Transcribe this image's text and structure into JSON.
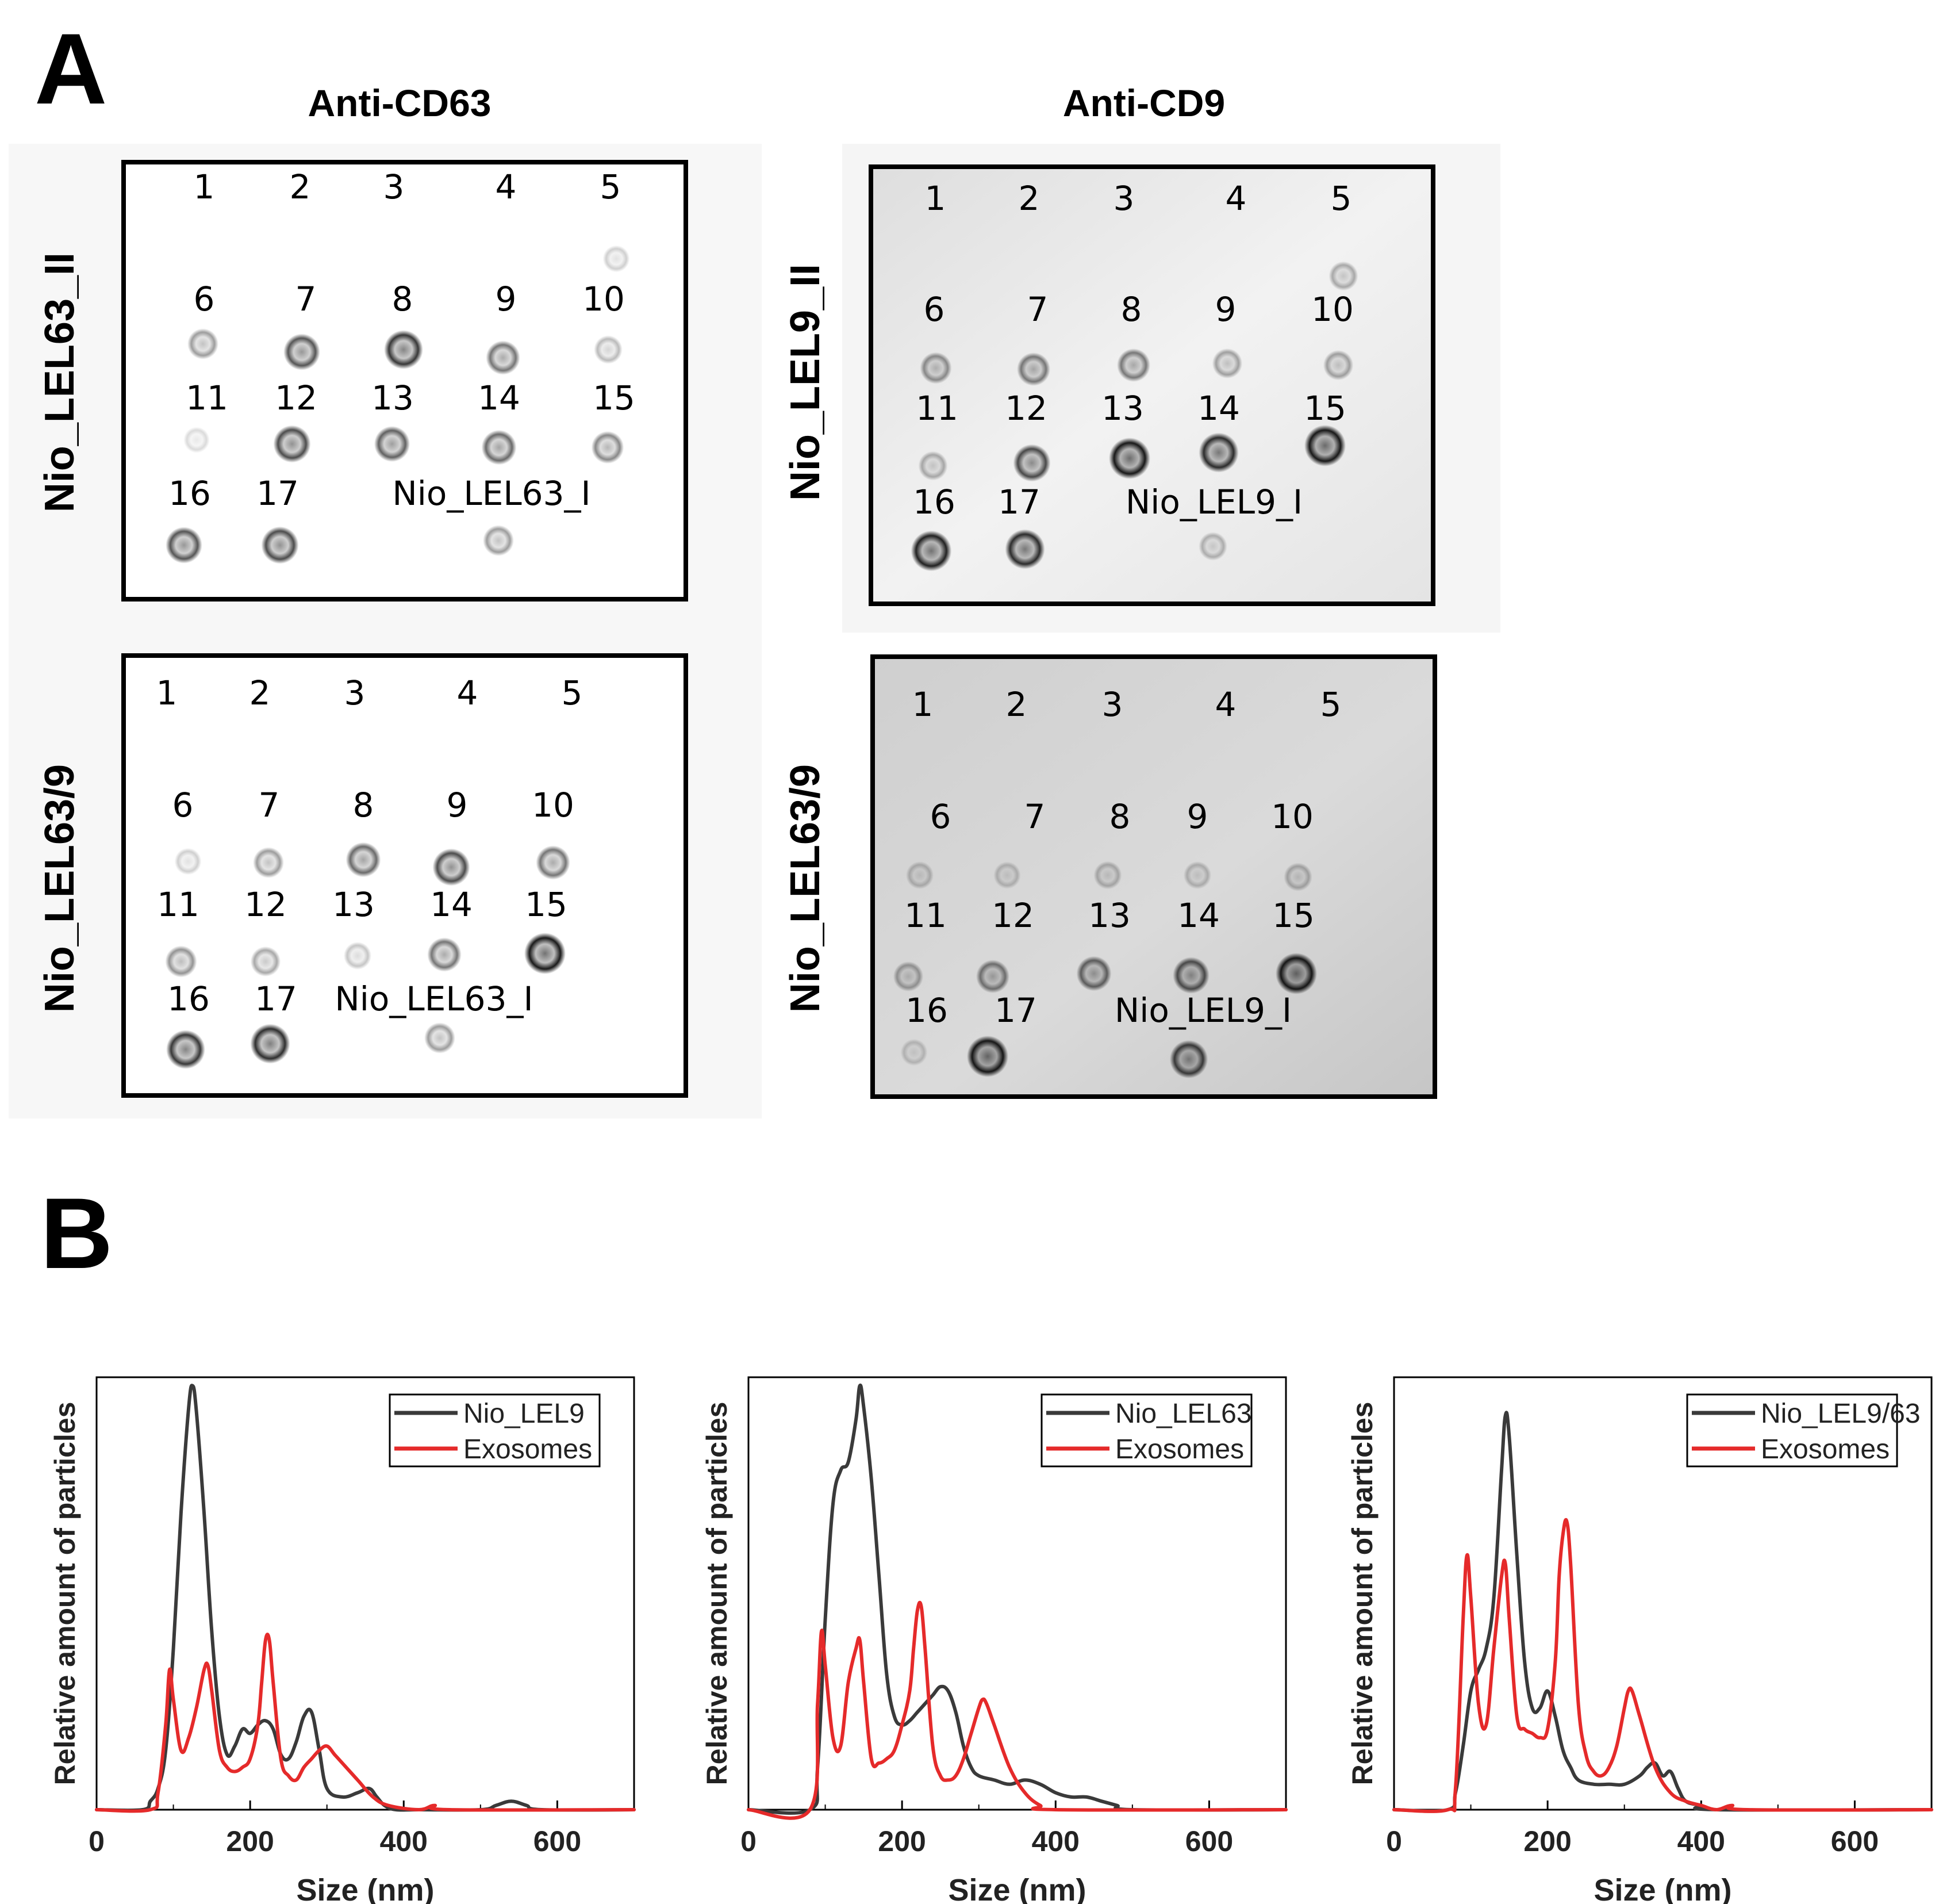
{
  "panel_a": {
    "label": "A",
    "column_titles": [
      "Anti-CD63",
      "Anti-CD9"
    ],
    "row_labels": {
      "top_left": "Nio_LEL63_II",
      "top_right": "Nio_LEL9_II",
      "bottom_left": "Nio_LEL63/9",
      "bottom_right": "Nio_LEL63/9"
    },
    "blots": [
      {
        "id": "cd63-top",
        "lane_labels": [
          "1",
          "2",
          "3",
          "4",
          "5",
          "6",
          "7",
          "8",
          "9",
          "10",
          "11",
          "12",
          "13",
          "14",
          "15",
          "16",
          "17"
        ],
        "control_label": "Nio_LEL63_I",
        "spot_intensity": [
          0,
          0,
          0,
          0,
          0.1,
          0.35,
          0.7,
          0.85,
          0.55,
          0.2,
          0.05,
          0.75,
          0.65,
          0.6,
          0.45,
          0.7,
          0.75,
          0.35
        ]
      },
      {
        "id": "cd9-top",
        "lane_labels": [
          "1",
          "2",
          "3",
          "4",
          "5",
          "6",
          "7",
          "8",
          "9",
          "10",
          "11",
          "12",
          "13",
          "14",
          "15",
          "16",
          "17"
        ],
        "control_label": "Nio_LEL9_I",
        "spot_intensity": [
          0,
          0,
          0,
          0,
          0.25,
          0.4,
          0.5,
          0.5,
          0.3,
          0.3,
          0.25,
          0.75,
          1,
          0.9,
          1,
          0.95,
          0.9,
          0.2
        ]
      },
      {
        "id": "cd63-bottom",
        "lane_labels": [
          "1",
          "2",
          "3",
          "4",
          "5",
          "6",
          "7",
          "8",
          "9",
          "10",
          "11",
          "12",
          "13",
          "14",
          "15",
          "16",
          "17"
        ],
        "control_label": "Nio_LEL63_I",
        "spot_intensity": [
          0,
          0,
          0,
          0,
          0,
          0.1,
          0.35,
          0.6,
          0.75,
          0.55,
          0.4,
          0.3,
          0.15,
          0.55,
          1,
          0.85,
          0.9,
          0.35
        ]
      },
      {
        "id": "cd9-bottom",
        "lane_labels": [
          "1",
          "2",
          "3",
          "4",
          "5",
          "6",
          "7",
          "8",
          "9",
          "10",
          "11",
          "12",
          "13",
          "14",
          "15",
          "16",
          "17"
        ],
        "control_label": "Nio_LEL9_I",
        "spot_intensity": [
          0,
          0,
          0,
          0,
          0,
          0.15,
          0.12,
          0.18,
          0.15,
          0.2,
          0.3,
          0.5,
          0.6,
          0.7,
          1,
          0.1,
          1,
          0.8
        ]
      }
    ]
  },
  "panel_b": {
    "label": "B"
  },
  "chart_data": [
    {
      "type": "line",
      "xlabel": "Size (nm)",
      "ylabel": "Relative amount of particles",
      "xlim": [
        0,
        700
      ],
      "ylim": [
        0,
        1.02
      ],
      "x_ticks": [
        "0",
        "200",
        "400",
        "600"
      ],
      "legend_position": "top-right",
      "series": [
        {
          "name": "Nio_LEL9",
          "color": "#3a3a3a",
          "x": [
            0,
            60,
            70,
            80,
            90,
            100,
            110,
            120,
            125,
            130,
            140,
            150,
            160,
            170,
            180,
            190,
            200,
            210,
            220,
            230,
            240,
            250,
            260,
            270,
            280,
            290,
            300,
            320,
            340,
            355,
            365,
            375,
            390,
            420,
            500,
            520,
            540,
            560,
            580,
            700
          ],
          "y": [
            0,
            0,
            0.02,
            0.05,
            0.14,
            0.38,
            0.7,
            0.95,
            1.0,
            0.94,
            0.7,
            0.42,
            0.22,
            0.13,
            0.15,
            0.19,
            0.18,
            0.2,
            0.21,
            0.19,
            0.13,
            0.12,
            0.16,
            0.22,
            0.23,
            0.14,
            0.05,
            0.03,
            0.04,
            0.05,
            0.03,
            0.01,
            0,
            0,
            0,
            0.01,
            0.02,
            0.01,
            0,
            0
          ]
        },
        {
          "name": "Exosomes",
          "color": "#e52a2a",
          "x": [
            0,
            70,
            80,
            90,
            95,
            100,
            110,
            120,
            130,
            140,
            145,
            150,
            160,
            170,
            180,
            190,
            200,
            210,
            215,
            220,
            225,
            230,
            240,
            250,
            260,
            270,
            280,
            290,
            300,
            310,
            320,
            340,
            360,
            380,
            420,
            440,
            460,
            700
          ],
          "y": [
            0,
            0,
            0.04,
            0.2,
            0.33,
            0.26,
            0.14,
            0.17,
            0.24,
            0.33,
            0.34,
            0.28,
            0.14,
            0.1,
            0.09,
            0.1,
            0.12,
            0.2,
            0.3,
            0.4,
            0.4,
            0.3,
            0.12,
            0.08,
            0.07,
            0.1,
            0.12,
            0.14,
            0.15,
            0.13,
            0.11,
            0.07,
            0.03,
            0.01,
            0,
            0.01,
            0,
            0
          ]
        }
      ]
    },
    {
      "type": "line",
      "xlabel": "Size (nm)",
      "ylabel": "Relative amount of particles",
      "xlim": [
        0,
        700
      ],
      "ylim": [
        0,
        1.02
      ],
      "x_ticks": [
        "0",
        "200",
        "400",
        "600"
      ],
      "legend_position": "top-right",
      "series": [
        {
          "name": "Nio_LEL63",
          "color": "#3a3a3a",
          "x": [
            0,
            80,
            90,
            100,
            110,
            120,
            130,
            140,
            145,
            150,
            160,
            170,
            180,
            190,
            200,
            210,
            220,
            230,
            240,
            250,
            260,
            270,
            280,
            290,
            300,
            320,
            340,
            360,
            380,
            400,
            420,
            440,
            460,
            480,
            500,
            700
          ],
          "y": [
            0,
            0,
            0.1,
            0.45,
            0.72,
            0.8,
            0.82,
            0.92,
            1.0,
            0.95,
            0.78,
            0.55,
            0.32,
            0.22,
            0.2,
            0.21,
            0.23,
            0.25,
            0.27,
            0.29,
            0.28,
            0.23,
            0.15,
            0.1,
            0.08,
            0.07,
            0.06,
            0.07,
            0.06,
            0.04,
            0.03,
            0.03,
            0.02,
            0.01,
            0,
            0
          ]
        },
        {
          "name": "Exosomes",
          "color": "#e52a2a",
          "x": [
            0,
            80,
            90,
            95,
            100,
            110,
            120,
            130,
            140,
            145,
            150,
            160,
            170,
            180,
            190,
            200,
            210,
            215,
            220,
            225,
            230,
            240,
            250,
            260,
            270,
            280,
            290,
            300,
            305,
            310,
            320,
            340,
            360,
            380,
            400,
            700
          ],
          "y": [
            0,
            0,
            0.25,
            0.42,
            0.34,
            0.17,
            0.15,
            0.3,
            0.38,
            0.4,
            0.3,
            0.12,
            0.11,
            0.12,
            0.14,
            0.2,
            0.28,
            0.38,
            0.47,
            0.48,
            0.38,
            0.15,
            0.08,
            0.07,
            0.08,
            0.12,
            0.18,
            0.24,
            0.26,
            0.25,
            0.2,
            0.1,
            0.04,
            0.01,
            0,
            0
          ]
        }
      ]
    },
    {
      "type": "line",
      "xlabel": "Size (nm)",
      "ylabel": "Relative amount of particles",
      "xlim": [
        0,
        700
      ],
      "ylim": [
        0,
        1.02
      ],
      "x_ticks": [
        "0",
        "200",
        "400",
        "600"
      ],
      "legend_position": "top-right",
      "series": [
        {
          "name": "Nio_LEL9/63",
          "color": "#3a3a3a",
          "x": [
            0,
            70,
            80,
            90,
            100,
            110,
            120,
            130,
            140,
            145,
            150,
            160,
            170,
            180,
            190,
            200,
            210,
            220,
            230,
            240,
            260,
            280,
            300,
            320,
            330,
            340,
            350,
            360,
            370,
            380,
            400,
            420,
            700
          ],
          "y": [
            0,
            0,
            0.04,
            0.15,
            0.28,
            0.33,
            0.38,
            0.5,
            0.8,
            0.93,
            0.88,
            0.6,
            0.35,
            0.24,
            0.24,
            0.28,
            0.22,
            0.14,
            0.1,
            0.07,
            0.06,
            0.06,
            0.06,
            0.08,
            0.1,
            0.11,
            0.08,
            0.09,
            0.05,
            0.02,
            0.01,
            0,
            0
          ]
        },
        {
          "name": "Exosomes",
          "color": "#e52a2a",
          "x": [
            0,
            70,
            80,
            90,
            95,
            100,
            110,
            120,
            130,
            140,
            145,
            150,
            160,
            170,
            180,
            190,
            200,
            210,
            215,
            220,
            225,
            230,
            240,
            250,
            260,
            270,
            280,
            290,
            300,
            305,
            310,
            320,
            340,
            360,
            380,
            400,
            420,
            440,
            460,
            700
          ],
          "y": [
            0,
            0,
            0.05,
            0.45,
            0.6,
            0.5,
            0.25,
            0.2,
            0.38,
            0.55,
            0.58,
            0.45,
            0.22,
            0.19,
            0.18,
            0.17,
            0.19,
            0.35,
            0.55,
            0.65,
            0.68,
            0.58,
            0.25,
            0.13,
            0.09,
            0.08,
            0.1,
            0.15,
            0.24,
            0.28,
            0.28,
            0.22,
            0.1,
            0.04,
            0.02,
            0.01,
            0,
            0.01,
            0,
            0
          ]
        }
      ]
    }
  ]
}
